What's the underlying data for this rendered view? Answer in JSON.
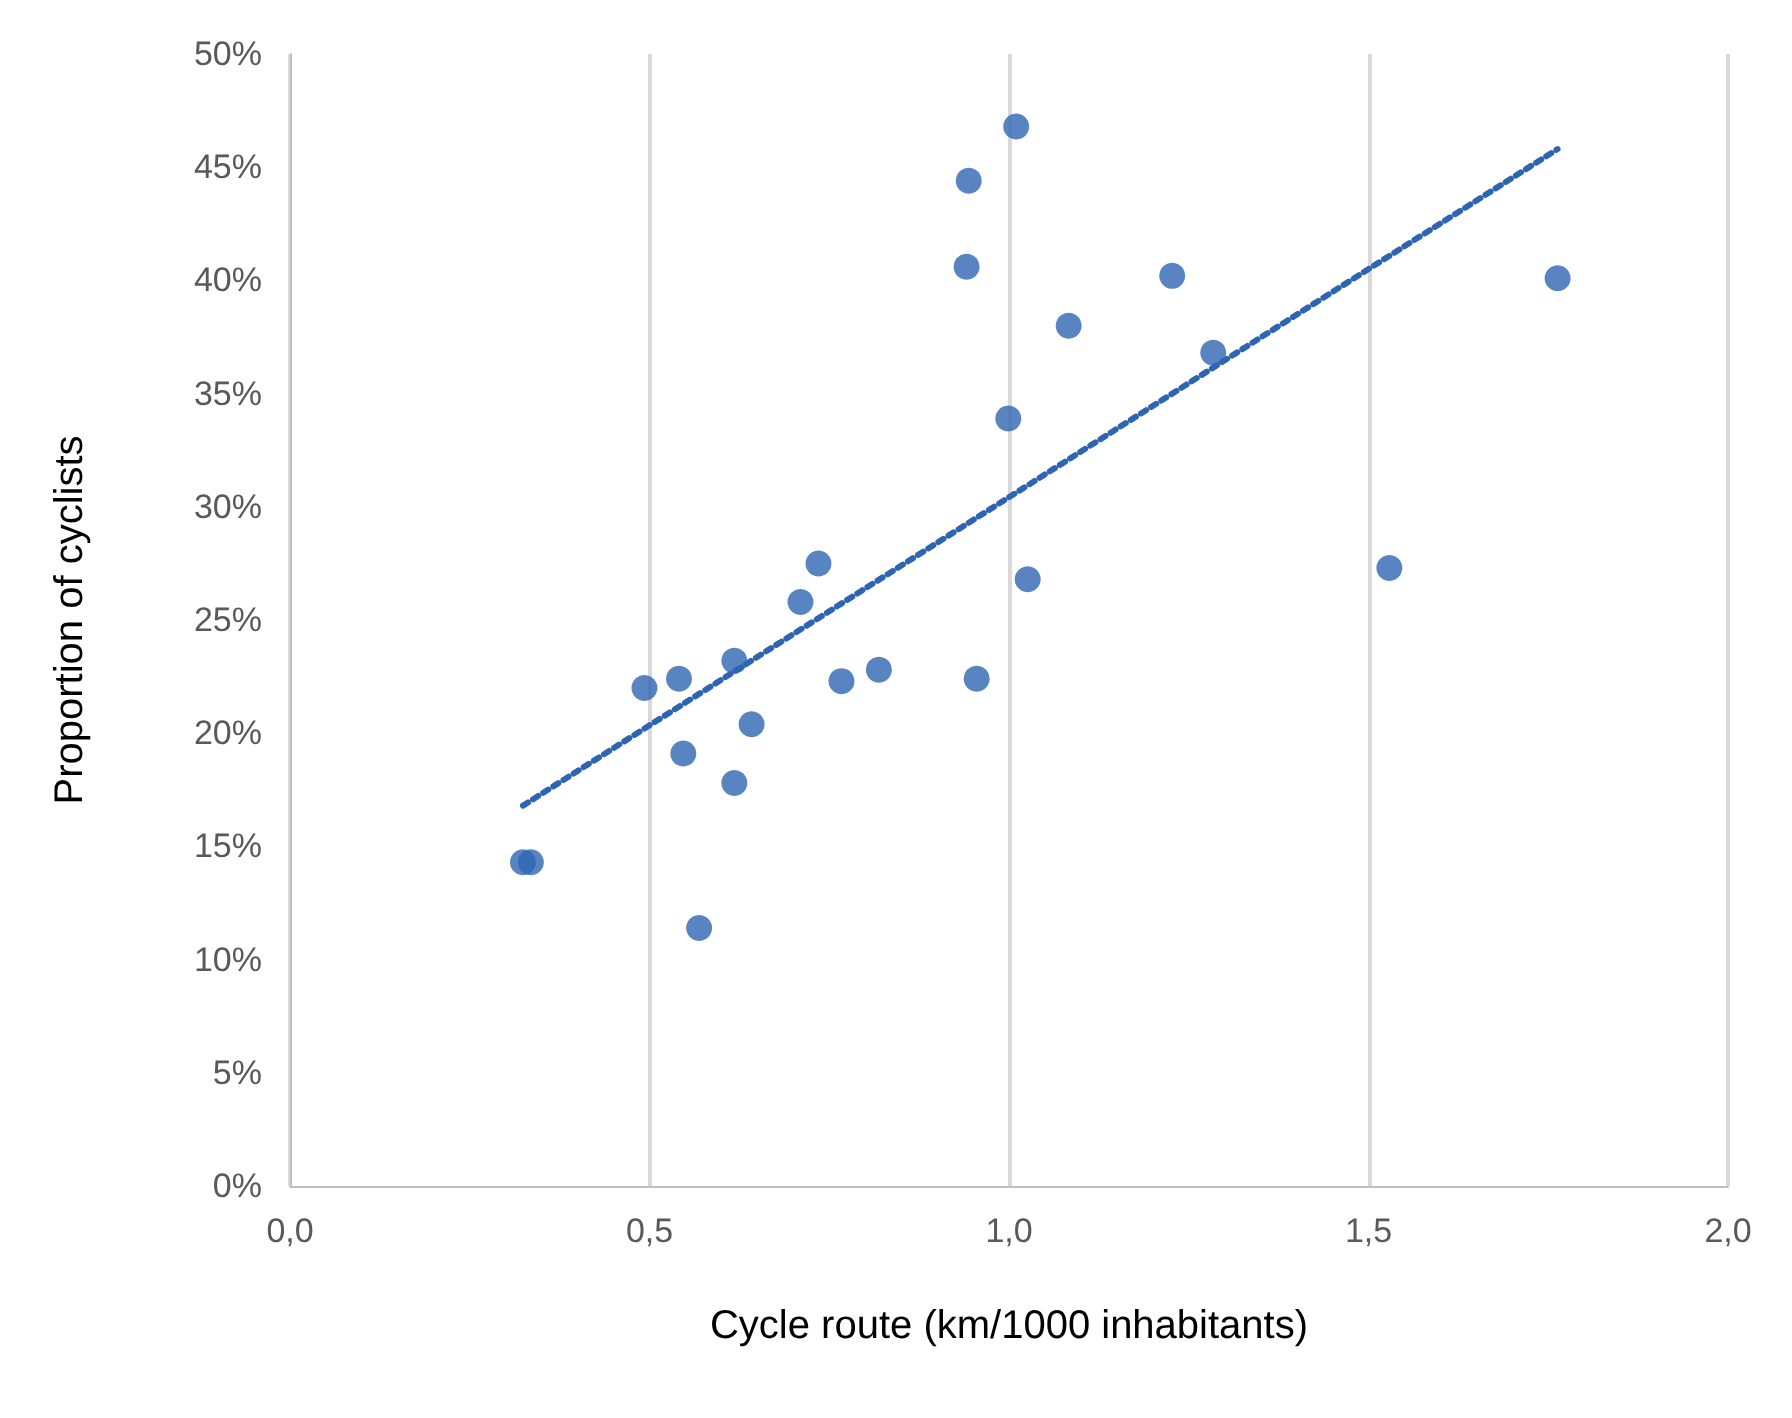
{
  "chart_data": {
    "type": "scatter",
    "xlabel": "Cycle route (km/1000 inhabitants)",
    "ylabel": "Proportion of cyclists",
    "xlim": [
      0,
      2
    ],
    "xticks": [
      {
        "value": 0,
        "label": "0,0"
      },
      {
        "value": 0.5,
        "label": "0,5"
      },
      {
        "value": 1,
        "label": "1,0"
      },
      {
        "value": 1.5,
        "label": "1,5"
      },
      {
        "value": 2,
        "label": "2,0"
      }
    ],
    "ylim": [
      0,
      50
    ],
    "yticks": [
      {
        "value": 0,
        "label": "0%"
      },
      {
        "value": 5,
        "label": "5%"
      },
      {
        "value": 10,
        "label": "10%"
      },
      {
        "value": 15,
        "label": "15%"
      },
      {
        "value": 20,
        "label": "20%"
      },
      {
        "value": 25,
        "label": "25%"
      },
      {
        "value": 30,
        "label": "30%"
      },
      {
        "value": 35,
        "label": "35%"
      },
      {
        "value": 40,
        "label": "40%"
      },
      {
        "value": 45,
        "label": "45%"
      },
      {
        "value": 50,
        "label": "50%"
      }
    ],
    "grid": "x",
    "marker": "circle",
    "series": [
      {
        "color": "#2e65b3",
        "x": [
          0.324,
          0.335,
          0.493,
          0.541,
          0.547,
          0.569,
          0.618,
          0.618,
          0.642,
          0.71,
          0.735,
          0.767,
          0.819,
          0.944,
          0.941,
          0.955,
          0.999,
          1.01,
          1.026,
          1.083,
          1.227,
          1.284,
          1.529,
          1.763
        ],
        "values": [
          14.3,
          14.3,
          22.0,
          22.4,
          19.1,
          11.4,
          23.2,
          17.8,
          20.4,
          25.8,
          27.5,
          22.3,
          22.8,
          44.4,
          40.6,
          22.4,
          33.9,
          46.8,
          26.8,
          38.0,
          40.2,
          36.8,
          27.3,
          40.1
        ]
      },
      {
        "type": "line",
        "color": "#2e65b3",
        "line_style": "dotted",
        "marker": "none",
        "x": [
          0.324,
          1.763
        ],
        "values": [
          16.8,
          45.8
        ]
      }
    ]
  }
}
